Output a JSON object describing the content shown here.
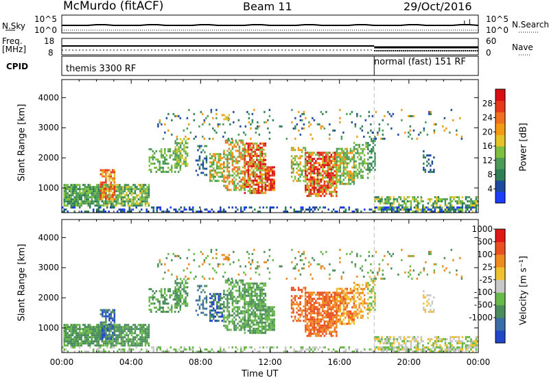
{
  "header": {
    "station": "McMurdo (fitACF)",
    "beam": "Beam 11",
    "date": "29/Oct/2016"
  },
  "top_panels": {
    "nsky_label": "N.Sky",
    "nsky_ticks": [
      "10^5",
      "10^0"
    ],
    "nsearch_label": "N.Search",
    "nsearch_ticks": [
      "10^5",
      "10^0"
    ],
    "freq_label": "Freq.",
    "freq_unit": "[MHz]",
    "freq_ticks": [
      "18",
      "8"
    ],
    "nave_label": "Nave",
    "nave_ticks": [
      "60",
      "0"
    ],
    "cpid_label": "CPID",
    "cpid_segments": [
      {
        "label": "themis 3300 RF",
        "start_hour": 0
      },
      {
        "label": "normal (fast) 151 RF",
        "start_hour": 18
      }
    ]
  },
  "chart_data": [
    {
      "type": "heatmap",
      "name": "power-panel",
      "ylabel": "Slant Range [km]",
      "colorbar_label": "Power [dB]",
      "ylim": [
        180,
        4600
      ],
      "y_ticks": [
        "1000",
        "2000",
        "3000",
        "4000"
      ],
      "colorbar_ticks": [
        "4",
        "8",
        "12",
        "16",
        "20",
        "24",
        "28"
      ],
      "colorbar_range": [
        0,
        32
      ],
      "colors": [
        "#1c3cff",
        "#1f4aa0",
        "#2e7f55",
        "#4c9c58",
        "#7fbf3f",
        "#e5c22a",
        "#f39a12",
        "#f07020",
        "#e53a1a",
        "#d80e12"
      ],
      "cpid_change_hour": 18
    },
    {
      "type": "heatmap",
      "name": "velocity-panel",
      "ylabel": "Slant Range [km]",
      "colorbar_label": "Velocity [m s⁻¹]",
      "ylim": [
        180,
        4600
      ],
      "y_ticks": [
        "1000",
        "2000",
        "3000",
        "4000"
      ],
      "colorbar_ticks": [
        "1000",
        "500",
        "100",
        "25",
        "-25",
        "-100",
        "-500",
        "-1000"
      ],
      "colors": [
        "#2246c8",
        "#3a6ca8",
        "#4a8c5c",
        "#68b84a",
        "#c8c8c8",
        "#f0c030",
        "#f08a20",
        "#e85020",
        "#e01818"
      ],
      "cpid_change_hour": 18
    }
  ],
  "x_axis": {
    "xlabel": "Time UT",
    "xlim_hours": [
      0,
      24
    ],
    "tick_labels": [
      "00:00",
      "04:00",
      "08:00",
      "12:00",
      "16:00",
      "20:00",
      "00:00"
    ]
  }
}
